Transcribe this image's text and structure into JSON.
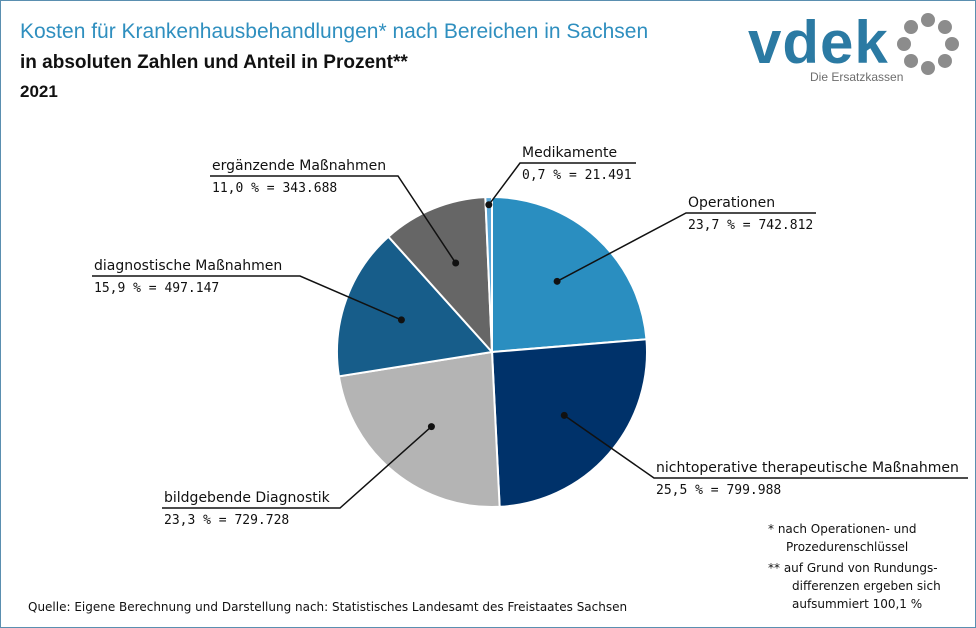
{
  "header": {
    "title": "Kosten für Krankenhausbehandlungen* nach Bereichen in Sachsen",
    "subtitle": "in absoluten Zahlen und Anteil in Prozent**",
    "year": "2021"
  },
  "logo": {
    "text": "vdek",
    "tagline": "Die Ersatzkassen",
    "color": "#2b7aa3",
    "ring_color": "#8c8c8c"
  },
  "chart_data": {
    "type": "pie",
    "title": "Kosten für Krankenhausbehandlungen* nach Bereichen in Sachsen",
    "categories": [
      "Operationen",
      "nichtoperative therapeutische Maßnahmen",
      "bildgebende Diagnostik",
      "diagnostische Maßnahmen",
      "ergänzende Maßnahmen",
      "Medikamente"
    ],
    "values": [
      742812,
      799988,
      729728,
      497147,
      343688,
      21491
    ],
    "percent": [
      23.7,
      25.5,
      23.3,
      15.9,
      11.0,
      0.7
    ],
    "value_labels": [
      "23,7 % = 742.812",
      "25,5 % = 799.988",
      "23,3 % = 729.728",
      "15,9 % = 497.147",
      "11,0 % = 343.688",
      "0,7 % = 21.491"
    ],
    "colors": [
      "#2a8ec0",
      "#00326a",
      "#b4b4b4",
      "#175d8a",
      "#666666",
      "#5aa7d6"
    ],
    "start_angle_deg": 0,
    "direction": "clockwise"
  },
  "footnotes": {
    "star1_line1": "* nach Operationen- und",
    "star1_line2": "Prozedurenschlüssel",
    "star2_line1": "** auf Grund von Rundungs-",
    "star2_line2": "differenzen ergeben sich",
    "star2_line3": "aufsummiert 100,1 %"
  },
  "source": "Quelle: Eigene Berechnung und Darstellung nach: Statistisches Landesamt des Freistaates Sachsen"
}
